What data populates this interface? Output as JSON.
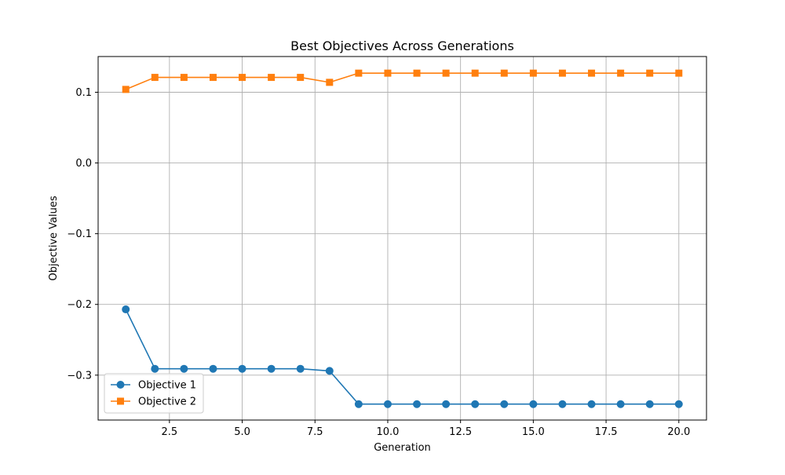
{
  "chart_data": {
    "type": "line",
    "title": "Best Objectives Across Generations",
    "xlabel": "Generation",
    "ylabel": "Objective Values",
    "xlim": [
      0.05,
      20.95
    ],
    "ylim": [
      -0.3635,
      0.1505
    ],
    "xticks": [
      2.5,
      5.0,
      7.5,
      10.0,
      12.5,
      15.0,
      17.5,
      20.0
    ],
    "xtick_labels": [
      "2.5",
      "5.0",
      "7.5",
      "10.0",
      "12.5",
      "15.0",
      "17.5",
      "20.0"
    ],
    "yticks": [
      -0.3,
      -0.2,
      -0.1,
      0.0,
      0.1
    ],
    "ytick_labels": [
      "−0.3",
      "−0.2",
      "−0.1",
      "0.0",
      "0.1"
    ],
    "grid": true,
    "legend_position": "lower-left",
    "x": [
      1,
      2,
      3,
      4,
      5,
      6,
      7,
      8,
      9,
      10,
      11,
      12,
      13,
      14,
      15,
      16,
      17,
      18,
      19,
      20
    ],
    "series": [
      {
        "name": "Objective 1",
        "color": "#1f77b4",
        "marker": "circle",
        "values": [
          -0.207,
          -0.291,
          -0.291,
          -0.291,
          -0.291,
          -0.291,
          -0.291,
          -0.294,
          -0.341,
          -0.341,
          -0.341,
          -0.341,
          -0.341,
          -0.341,
          -0.341,
          -0.341,
          -0.341,
          -0.341,
          -0.341,
          -0.341
        ]
      },
      {
        "name": "Objective 2",
        "color": "#ff7f0e",
        "marker": "square",
        "values": [
          0.104,
          0.121,
          0.121,
          0.121,
          0.121,
          0.121,
          0.121,
          0.114,
          0.127,
          0.127,
          0.127,
          0.127,
          0.127,
          0.127,
          0.127,
          0.127,
          0.127,
          0.127,
          0.127,
          0.127
        ]
      }
    ]
  }
}
